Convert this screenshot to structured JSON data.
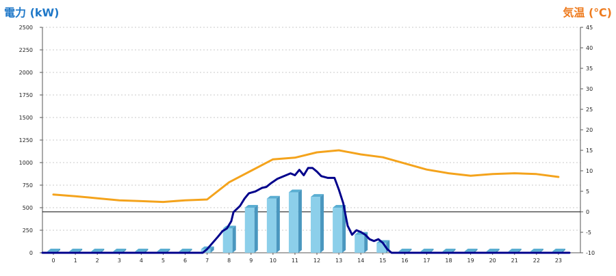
{
  "chart_data": {
    "type": "bar",
    "title_left": "電力 (kW)",
    "title_right": "気温 (℃)",
    "x": [
      "0",
      "1",
      "2",
      "3",
      "4",
      "5",
      "6",
      "7",
      "8",
      "9",
      "10",
      "11",
      "12",
      "13",
      "14",
      "15",
      "16",
      "17",
      "18",
      "19",
      "20",
      "21",
      "22",
      "23"
    ],
    "y_left": {
      "min": 0,
      "max": 2500,
      "step": 250,
      "ticks": [
        "0",
        "250",
        "500",
        "750",
        "1000",
        "1250",
        "1500",
        "1750",
        "2000",
        "2250",
        "2500"
      ]
    },
    "y_right": {
      "min": -10,
      "max": 45,
      "step": 5,
      "ticks": [
        "-10",
        "-5",
        "0",
        "5",
        "10",
        "15",
        "20",
        "25",
        "30",
        "35",
        "40",
        "45"
      ]
    },
    "grid": true,
    "colors": {
      "bar_front": "#8ccfea",
      "bar_top": "#5aaed2",
      "bar_side": "#4a97bf",
      "power_line": "#00008b",
      "temp_line": "#f4a31c",
      "title_left": "#1f78c8",
      "title_right": "#ee7b1e",
      "zero_line": "#000000",
      "grid": "#c8c8c8"
    },
    "series": [
      {
        "kind": "bar",
        "values": [
          0,
          0,
          0,
          0,
          0,
          0,
          0,
          40,
          270,
          500,
          600,
          670,
          620,
          500,
          200,
          110,
          0,
          0,
          0,
          0,
          0,
          0,
          0,
          0
        ]
      },
      {
        "kind": "line",
        "axis": "left",
        "color": "power_line",
        "points": [
          [
            -0.5,
            0
          ],
          [
            6.8,
            0
          ],
          [
            7.0,
            40
          ],
          [
            7.5,
            180
          ],
          [
            7.7,
            240
          ],
          [
            7.9,
            270
          ],
          [
            8.1,
            350
          ],
          [
            8.2,
            450
          ],
          [
            8.5,
            520
          ],
          [
            8.7,
            600
          ],
          [
            8.9,
            660
          ],
          [
            9.2,
            680
          ],
          [
            9.5,
            720
          ],
          [
            9.7,
            730
          ],
          [
            9.9,
            770
          ],
          [
            10.2,
            820
          ],
          [
            10.5,
            850
          ],
          [
            10.8,
            880
          ],
          [
            11.0,
            860
          ],
          [
            11.2,
            920
          ],
          [
            11.4,
            860
          ],
          [
            11.6,
            940
          ],
          [
            11.8,
            940
          ],
          [
            12.0,
            900
          ],
          [
            12.2,
            850
          ],
          [
            12.5,
            830
          ],
          [
            12.8,
            830
          ],
          [
            13.0,
            700
          ],
          [
            13.2,
            550
          ],
          [
            13.4,
            300
          ],
          [
            13.6,
            200
          ],
          [
            13.8,
            250
          ],
          [
            14.0,
            230
          ],
          [
            14.2,
            200
          ],
          [
            14.4,
            150
          ],
          [
            14.6,
            130
          ],
          [
            14.8,
            150
          ],
          [
            15.0,
            110
          ],
          [
            15.2,
            40
          ],
          [
            15.4,
            0
          ],
          [
            23.5,
            0
          ]
        ]
      },
      {
        "kind": "line",
        "axis": "right",
        "color": "temp_line",
        "points": [
          [
            0,
            4.2
          ],
          [
            1,
            3.8
          ],
          [
            2,
            3.3
          ],
          [
            3,
            2.8
          ],
          [
            4,
            2.6
          ],
          [
            5,
            2.4
          ],
          [
            6,
            2.8
          ],
          [
            7,
            3.0
          ],
          [
            8,
            7.2
          ],
          [
            9,
            10.0
          ],
          [
            10,
            12.8
          ],
          [
            11,
            13.2
          ],
          [
            12,
            14.5
          ],
          [
            13,
            15.0
          ],
          [
            14,
            14.0
          ],
          [
            15,
            13.3
          ],
          [
            16,
            11.8
          ],
          [
            17,
            10.3
          ],
          [
            18,
            9.4
          ],
          [
            19,
            8.8
          ],
          [
            20,
            9.2
          ],
          [
            21,
            9.4
          ],
          [
            22,
            9.2
          ],
          [
            23,
            8.5
          ]
        ]
      }
    ]
  }
}
